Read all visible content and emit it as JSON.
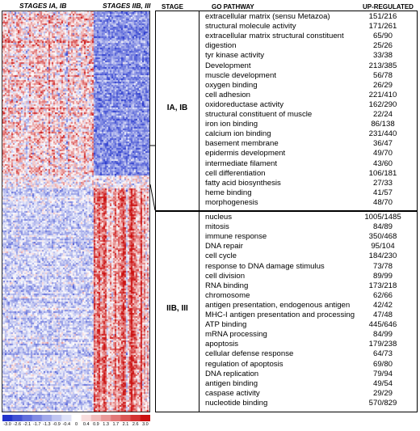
{
  "heatmap": {
    "stages_early_label": "STAGES IA, IB",
    "stages_late_label": "STAGES IIB, III",
    "colorscale": {
      "low_color": "#2233cc",
      "mid_color": "#ffffff",
      "high_color": "#cc1111",
      "ticks": [
        "-3.0",
        "-2.6",
        "-2.1",
        "-1.7",
        "-1.3",
        "-0.9",
        "-0.4",
        "0",
        "0.4",
        "0.9",
        "1.3",
        "1.7",
        "2.1",
        "2.6",
        "3.0"
      ]
    }
  },
  "table": {
    "stage_header": "STAGE",
    "pathway_header": "GO PATHWAY",
    "upregulated_header": "UP-REGULATED",
    "groups": [
      {
        "stage": "IA, IB",
        "rows": [
          {
            "pathway": "extracellular matrix (sensu Metazoa)",
            "count": "151/216"
          },
          {
            "pathway": "structural molecule activity",
            "count": "171/261"
          },
          {
            "pathway": "extracellular matrix structural constituent",
            "count": "65/90"
          },
          {
            "pathway": "digestion",
            "count": "25/26"
          },
          {
            "pathway": "tyr kinase activity",
            "count": "33/38"
          },
          {
            "pathway": "Development",
            "count": "213/385"
          },
          {
            "pathway": "muscle development",
            "count": "56/78"
          },
          {
            "pathway": "oxygen binding",
            "count": "26/29"
          },
          {
            "pathway": "cell adhesion",
            "count": "221/410"
          },
          {
            "pathway": "oxidoreductase activity",
            "count": "162/290"
          },
          {
            "pathway": "structural constituent of muscle",
            "count": "22/24"
          },
          {
            "pathway": "iron ion binding",
            "count": "86/138"
          },
          {
            "pathway": "calcium ion binding",
            "count": "231/440"
          },
          {
            "pathway": "basement membrane",
            "count": "36/47"
          },
          {
            "pathway": "epidermis development",
            "count": "49/70"
          },
          {
            "pathway": "intermediate filament",
            "count": "43/60"
          },
          {
            "pathway": "cell differentiation",
            "count": "106/181"
          },
          {
            "pathway": "fatty acid biosynthesis",
            "count": "27/33"
          },
          {
            "pathway": "heme binding",
            "count": "41/57"
          },
          {
            "pathway": "morphogenesis",
            "count": "48/70"
          }
        ]
      },
      {
        "stage": "IIB, III",
        "rows": [
          {
            "pathway": "nucleus",
            "count": "1005/1485"
          },
          {
            "pathway": "mitosis",
            "count": "84/89"
          },
          {
            "pathway": "immune response",
            "count": "350/468"
          },
          {
            "pathway": "DNA repair",
            "count": "95/104"
          },
          {
            "pathway": "cell cycle",
            "count": "184/230"
          },
          {
            "pathway": "response to DNA damage stimulus",
            "count": "73/78"
          },
          {
            "pathway": "cell division",
            "count": "89/99"
          },
          {
            "pathway": "RNA binding",
            "count": "173/218"
          },
          {
            "pathway": "chromosome",
            "count": "62/66"
          },
          {
            "pathway": "antigen presentation, endogenous antigen",
            "count": "42/42"
          },
          {
            "pathway": "MHC-I antigen presentation and processing",
            "count": "47/48"
          },
          {
            "pathway": "ATP binding",
            "count": "445/646"
          },
          {
            "pathway": "mRNA processing",
            "count": "84/99"
          },
          {
            "pathway": "apoptosis",
            "count": "179/238"
          },
          {
            "pathway": "cellular defense response",
            "count": "64/73"
          },
          {
            "pathway": "regulation of apoptosis",
            "count": "69/80"
          },
          {
            "pathway": "DNA replication",
            "count": "79/94"
          },
          {
            "pathway": "antigen binding",
            "count": "49/54"
          },
          {
            "pathway": "caspase activity",
            "count": "29/29"
          },
          {
            "pathway": "nucleotide binding",
            "count": "570/829"
          }
        ]
      }
    ]
  }
}
